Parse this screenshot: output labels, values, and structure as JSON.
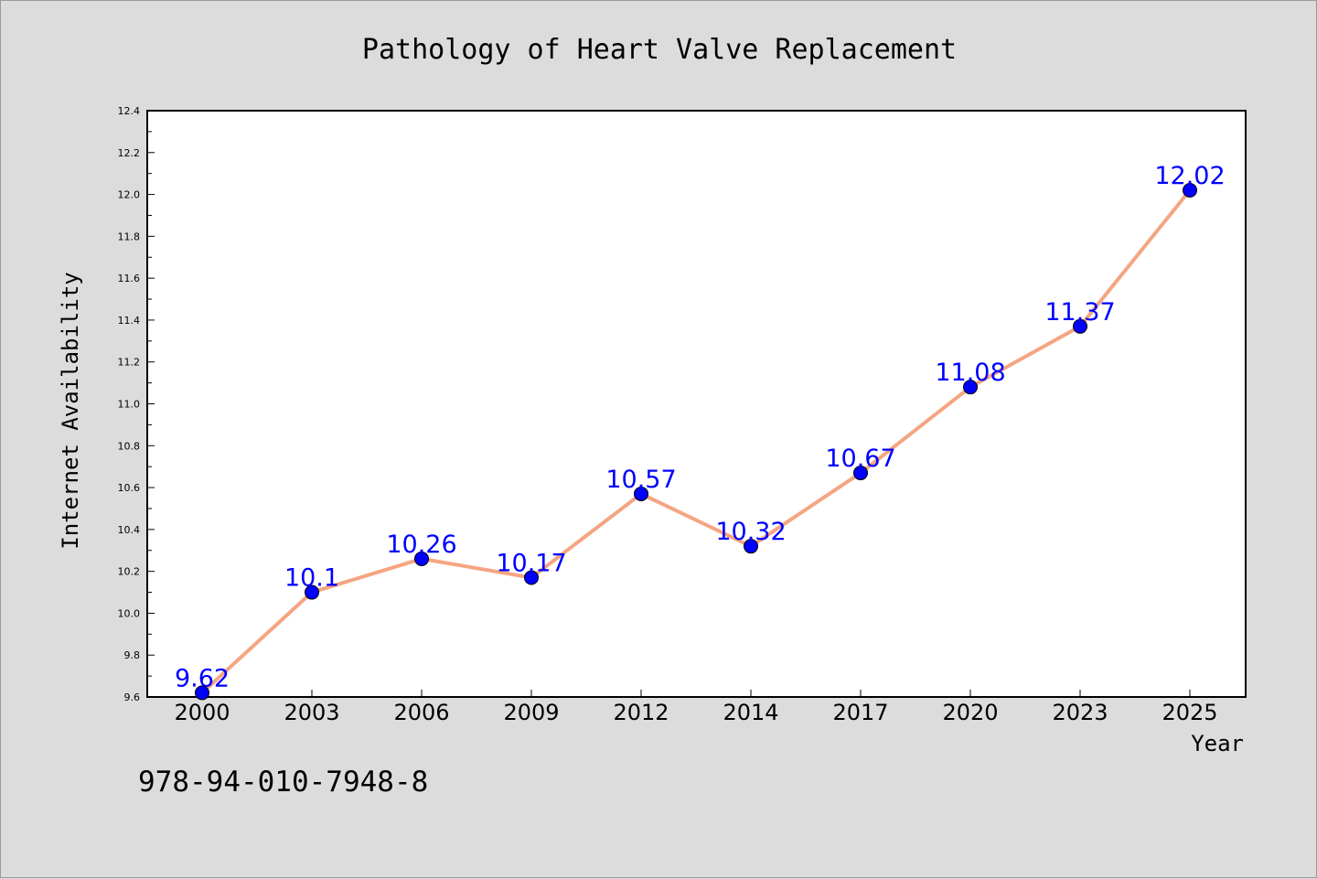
{
  "chart_data": {
    "type": "line",
    "title": "Pathology of Heart Valve Replacement",
    "xlabel": "Year",
    "ylabel": "Internet Availability",
    "categories": [
      "2000",
      "2003",
      "2006",
      "2009",
      "2012",
      "2014",
      "2017",
      "2020",
      "2023",
      "2025"
    ],
    "values": [
      9.62,
      10.1,
      10.26,
      10.17,
      10.57,
      10.32,
      10.67,
      11.08,
      11.37,
      12.02
    ],
    "data_labels": [
      "9.62",
      "10.1",
      "10.26",
      "10.17",
      "10.57",
      "10.32",
      "10.67",
      "11.08",
      "11.37",
      "12.02"
    ],
    "ylim": [
      9.6,
      12.4
    ],
    "yticks": [
      "9.6",
      "9.8",
      "10.0",
      "10.2",
      "10.4",
      "10.6",
      "10.8",
      "11.0",
      "11.2",
      "11.4",
      "11.6",
      "11.8",
      "12.0",
      "12.2",
      "12.4"
    ],
    "grid": false,
    "line_color": "#f4a582",
    "marker_color": "#0000ff",
    "label_color": "#0000ff"
  },
  "footer": {
    "isbn": "978-94-010-7948-8"
  }
}
